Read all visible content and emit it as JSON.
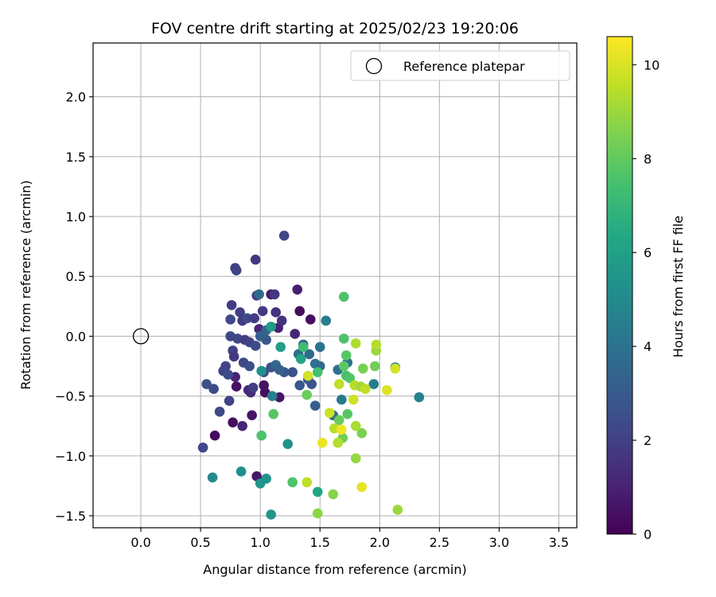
{
  "chart_data": {
    "type": "scatter",
    "title": "FOV centre drift starting at 2025/02/23 19:20:06",
    "xlabel": "Angular distance from reference (arcmin)",
    "ylabel": "Rotation from reference (arcmin)",
    "xlim": [
      -0.4,
      3.65
    ],
    "ylim": [
      -1.6,
      2.45
    ],
    "xticks": [
      0.0,
      0.5,
      1.0,
      1.5,
      2.0,
      2.5,
      3.0,
      3.5
    ],
    "xtick_labels": [
      "0.0",
      "0.5",
      "1.0",
      "1.5",
      "2.0",
      "2.5",
      "3.0",
      "3.5"
    ],
    "yticks": [
      -1.5,
      -1.0,
      -0.5,
      0.0,
      0.5,
      1.0,
      1.5,
      2.0
    ],
    "ytick_labels": [
      "−1.5",
      "−1.0",
      "−0.5",
      "0.0",
      "0.5",
      "1.0",
      "1.5",
      "2.0"
    ],
    "grid": true,
    "legend": {
      "placement": "top-right",
      "label": "Reference platepar"
    },
    "reference_point": {
      "x": 0.0,
      "y": 0.0
    },
    "colorbar": {
      "label": "Hours from first FF file",
      "min": 0,
      "max": 10.6,
      "ticks": [
        0,
        2,
        4,
        6,
        8,
        10
      ],
      "tick_labels": [
        "0",
        "2",
        "4",
        "6",
        "8",
        "10"
      ],
      "colormap": "viridis"
    },
    "points": [
      {
        "x": 0.62,
        "y": -0.83,
        "t": 0.3
      },
      {
        "x": 0.77,
        "y": -0.72,
        "t": 0.4
      },
      {
        "x": 0.8,
        "y": -0.42,
        "t": 0.5
      },
      {
        "x": 0.93,
        "y": -0.66,
        "t": 0.6
      },
      {
        "x": 0.97,
        "y": -1.17,
        "t": 0.7
      },
      {
        "x": 1.04,
        "y": -0.47,
        "t": 0.4
      },
      {
        "x": 1.03,
        "y": -0.41,
        "t": 0.5
      },
      {
        "x": 1.16,
        "y": -0.51,
        "t": 0.6
      },
      {
        "x": 1.33,
        "y": 0.21,
        "t": 0.3
      },
      {
        "x": 1.42,
        "y": 0.14,
        "t": 0.4
      },
      {
        "x": 1.31,
        "y": 0.39,
        "t": 0.9
      },
      {
        "x": 1.09,
        "y": 0.35,
        "t": 0.8
      },
      {
        "x": 1.15,
        "y": 0.07,
        "t": 1.0
      },
      {
        "x": 0.99,
        "y": 0.06,
        "t": 1.1
      },
      {
        "x": 0.85,
        "y": -0.75,
        "t": 1.1
      },
      {
        "x": 0.79,
        "y": -0.34,
        "t": 1.0
      },
      {
        "x": 0.9,
        "y": -0.45,
        "t": 1.2
      },
      {
        "x": 0.92,
        "y": -0.47,
        "t": 1.3
      },
      {
        "x": 1.29,
        "y": 0.02,
        "t": 1.2
      },
      {
        "x": 1.13,
        "y": 0.2,
        "t": 1.5
      },
      {
        "x": 1.18,
        "y": 0.13,
        "t": 1.6
      },
      {
        "x": 0.96,
        "y": 0.64,
        "t": 1.7
      },
      {
        "x": 0.79,
        "y": 0.57,
        "t": 2.0
      },
      {
        "x": 0.8,
        "y": 0.55,
        "t": 2.1
      },
      {
        "x": 0.76,
        "y": 0.26,
        "t": 1.9
      },
      {
        "x": 0.83,
        "y": 0.2,
        "t": 2.0
      },
      {
        "x": 0.75,
        "y": 0.14,
        "t": 2.2
      },
      {
        "x": 0.85,
        "y": 0.13,
        "t": 1.8
      },
      {
        "x": 0.89,
        "y": 0.15,
        "t": 2.3
      },
      {
        "x": 0.95,
        "y": 0.15,
        "t": 1.9
      },
      {
        "x": 1.02,
        "y": 0.21,
        "t": 1.8
      },
      {
        "x": 0.97,
        "y": 0.34,
        "t": 2.0
      },
      {
        "x": 1.12,
        "y": 0.35,
        "t": 1.7
      },
      {
        "x": 1.2,
        "y": 0.84,
        "t": 2.2
      },
      {
        "x": 0.75,
        "y": 0.0,
        "t": 2.3
      },
      {
        "x": 0.81,
        "y": -0.02,
        "t": 2.2
      },
      {
        "x": 0.87,
        "y": -0.03,
        "t": 1.9
      },
      {
        "x": 0.91,
        "y": -0.05,
        "t": 2.1
      },
      {
        "x": 0.96,
        "y": -0.08,
        "t": 2.4
      },
      {
        "x": 0.77,
        "y": -0.12,
        "t": 2.0
      },
      {
        "x": 0.78,
        "y": -0.17,
        "t": 1.8
      },
      {
        "x": 0.86,
        "y": -0.22,
        "t": 2.3
      },
      {
        "x": 0.91,
        "y": -0.25,
        "t": 2.5
      },
      {
        "x": 0.71,
        "y": -0.25,
        "t": 2.1
      },
      {
        "x": 0.69,
        "y": -0.29,
        "t": 2.2
      },
      {
        "x": 0.73,
        "y": -0.32,
        "t": 2.4
      },
      {
        "x": 0.55,
        "y": -0.4,
        "t": 2.6
      },
      {
        "x": 0.61,
        "y": -0.44,
        "t": 2.4
      },
      {
        "x": 0.52,
        "y": -0.93,
        "t": 2.2
      },
      {
        "x": 0.66,
        "y": -0.63,
        "t": 2.3
      },
      {
        "x": 0.74,
        "y": -0.54,
        "t": 2.1
      },
      {
        "x": 0.94,
        "y": -0.43,
        "t": 1.9
      },
      {
        "x": 1.03,
        "y": -0.3,
        "t": 2.4
      },
      {
        "x": 1.09,
        "y": -0.26,
        "t": 2.6
      },
      {
        "x": 1.2,
        "y": -0.3,
        "t": 2.8
      },
      {
        "x": 1.27,
        "y": -0.3,
        "t": 2.7
      },
      {
        "x": 1.33,
        "y": -0.41,
        "t": 2.9
      },
      {
        "x": 1.4,
        "y": -0.36,
        "t": 3.0
      },
      {
        "x": 1.46,
        "y": -0.58,
        "t": 3.1
      },
      {
        "x": 1.43,
        "y": -0.4,
        "t": 2.8
      },
      {
        "x": 1.05,
        "y": -0.03,
        "t": 2.9
      },
      {
        "x": 1.0,
        "y": 0.0,
        "t": 3.2
      },
      {
        "x": 1.05,
        "y": 0.05,
        "t": 3.4
      },
      {
        "x": 0.99,
        "y": 0.35,
        "t": 3.6
      },
      {
        "x": 1.13,
        "y": -0.24,
        "t": 3.5
      },
      {
        "x": 1.16,
        "y": -0.28,
        "t": 3.3
      },
      {
        "x": 1.32,
        "y": -0.15,
        "t": 3.8
      },
      {
        "x": 1.36,
        "y": -0.07,
        "t": 3.2
      },
      {
        "x": 1.41,
        "y": -0.15,
        "t": 3.6
      },
      {
        "x": 1.46,
        "y": -0.23,
        "t": 3.9
      },
      {
        "x": 1.5,
        "y": -0.25,
        "t": 3.7
      },
      {
        "x": 1.55,
        "y": 0.13,
        "t": 4.4
      },
      {
        "x": 1.5,
        "y": -0.09,
        "t": 4.1
      },
      {
        "x": 1.65,
        "y": -0.28,
        "t": 3.9
      },
      {
        "x": 1.73,
        "y": -0.22,
        "t": 4.0
      },
      {
        "x": 1.61,
        "y": -0.66,
        "t": 3.7
      },
      {
        "x": 1.68,
        "y": -0.53,
        "t": 4.3
      },
      {
        "x": 1.95,
        "y": -0.4,
        "t": 4.5
      },
      {
        "x": 2.13,
        "y": -0.26,
        "t": 4.6
      },
      {
        "x": 2.33,
        "y": -0.51,
        "t": 4.7
      },
      {
        "x": 1.1,
        "y": -0.5,
        "t": 4.6
      },
      {
        "x": 0.6,
        "y": -1.18,
        "t": 5.0
      },
      {
        "x": 0.84,
        "y": -1.13,
        "t": 5.2
      },
      {
        "x": 1.0,
        "y": -1.23,
        "t": 5.6
      },
      {
        "x": 1.05,
        "y": -1.19,
        "t": 5.3
      },
      {
        "x": 1.09,
        "y": -1.49,
        "t": 5.5
      },
      {
        "x": 1.23,
        "y": -0.9,
        "t": 5.4
      },
      {
        "x": 1.01,
        "y": -0.29,
        "t": 5.3
      },
      {
        "x": 1.09,
        "y": 0.08,
        "t": 5.8
      },
      {
        "x": 1.17,
        "y": -0.09,
        "t": 5.9
      },
      {
        "x": 1.34,
        "y": -0.19,
        "t": 6.2
      },
      {
        "x": 1.48,
        "y": -1.3,
        "t": 6.3
      },
      {
        "x": 1.36,
        "y": -0.09,
        "t": 7.3
      },
      {
        "x": 1.48,
        "y": -0.3,
        "t": 7.4
      },
      {
        "x": 1.7,
        "y": 0.33,
        "t": 7.6
      },
      {
        "x": 1.7,
        "y": -0.02,
        "t": 7.6
      },
      {
        "x": 1.72,
        "y": -0.16,
        "t": 7.8
      },
      {
        "x": 1.7,
        "y": -0.25,
        "t": 7.9
      },
      {
        "x": 1.72,
        "y": -0.33,
        "t": 7.5
      },
      {
        "x": 1.75,
        "y": -0.35,
        "t": 7.7
      },
      {
        "x": 1.73,
        "y": -0.65,
        "t": 7.8
      },
      {
        "x": 1.66,
        "y": -0.7,
        "t": 8.1
      },
      {
        "x": 1.69,
        "y": -0.85,
        "t": 8.3
      },
      {
        "x": 1.01,
        "y": -0.83,
        "t": 7.6
      },
      {
        "x": 1.11,
        "y": -0.65,
        "t": 7.8
      },
      {
        "x": 1.27,
        "y": -1.22,
        "t": 7.6
      },
      {
        "x": 1.39,
        "y": -0.49,
        "t": 8.2
      },
      {
        "x": 1.48,
        "y": -1.48,
        "t": 8.8
      },
      {
        "x": 1.61,
        "y": -1.32,
        "t": 8.7
      },
      {
        "x": 1.8,
        "y": -1.02,
        "t": 8.9
      },
      {
        "x": 1.85,
        "y": -0.81,
        "t": 8.5
      },
      {
        "x": 1.86,
        "y": -0.27,
        "t": 8.4
      },
      {
        "x": 1.96,
        "y": -0.25,
        "t": 8.3
      },
      {
        "x": 1.97,
        "y": -0.12,
        "t": 9.0
      },
      {
        "x": 1.97,
        "y": -0.07,
        "t": 9.4
      },
      {
        "x": 1.8,
        "y": -0.06,
        "t": 9.3
      },
      {
        "x": 1.79,
        "y": -0.41,
        "t": 9.5
      },
      {
        "x": 1.84,
        "y": -0.42,
        "t": 9.1
      },
      {
        "x": 1.88,
        "y": -0.44,
        "t": 9.6
      },
      {
        "x": 1.8,
        "y": -0.75,
        "t": 9.2
      },
      {
        "x": 1.78,
        "y": -0.53,
        "t": 9.8
      },
      {
        "x": 1.62,
        "y": -0.77,
        "t": 9.5
      },
      {
        "x": 1.65,
        "y": -0.89,
        "t": 9.4
      },
      {
        "x": 1.58,
        "y": -0.64,
        "t": 9.8
      },
      {
        "x": 1.39,
        "y": -1.22,
        "t": 9.6
      },
      {
        "x": 1.4,
        "y": -0.33,
        "t": 9.9
      },
      {
        "x": 1.68,
        "y": -0.78,
        "t": 10.4
      },
      {
        "x": 1.52,
        "y": -0.89,
        "t": 10.3
      },
      {
        "x": 1.85,
        "y": -1.26,
        "t": 10.2
      },
      {
        "x": 2.06,
        "y": -0.45,
        "t": 10.1
      },
      {
        "x": 2.13,
        "y": -0.27,
        "t": 9.9
      },
      {
        "x": 2.15,
        "y": -1.45,
        "t": 9.0
      },
      {
        "x": 1.66,
        "y": -0.4,
        "t": 9.6
      }
    ]
  }
}
